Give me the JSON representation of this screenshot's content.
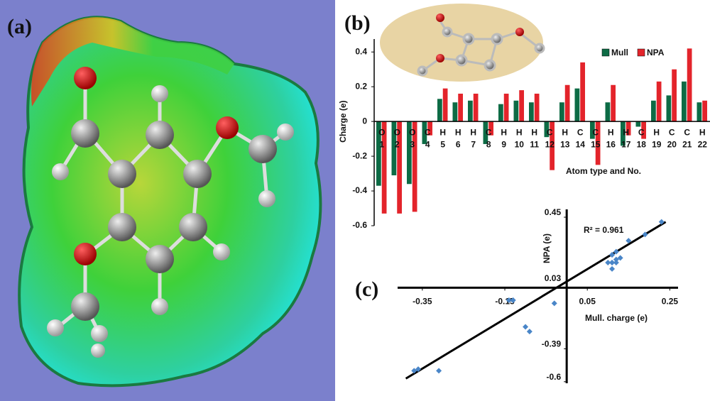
{
  "panel_a": {
    "label": "(a)"
  },
  "chart_data": [
    {
      "type": "bar",
      "label": "(b)",
      "ylabel": "Charge (e)",
      "xlabel": "Atom type and No.",
      "categories": [
        "1",
        "2",
        "3",
        "4",
        "5",
        "6",
        "7",
        "8",
        "9",
        "10",
        "11",
        "12",
        "13",
        "14",
        "15",
        "16",
        "17",
        "18",
        "19",
        "20",
        "21",
        "22"
      ],
      "atom_types": [
        "O",
        "O",
        "O",
        "C",
        "H",
        "H",
        "H",
        "C",
        "H",
        "H",
        "H",
        "C",
        "H",
        "C",
        "C",
        "H",
        "H",
        "C",
        "H",
        "C",
        "C",
        "H"
      ],
      "series": [
        {
          "name": "Mull",
          "color": "#0d6b45",
          "values": [
            -0.37,
            -0.31,
            -0.36,
            -0.13,
            0.13,
            0.11,
            0.12,
            -0.13,
            0.1,
            0.12,
            0.11,
            -0.09,
            0.11,
            0.19,
            -0.1,
            0.11,
            -0.14,
            -0.03,
            0.12,
            0.15,
            0.23,
            0.11
          ]
        },
        {
          "name": "NPA",
          "color": "#e3242b",
          "values": [
            -0.53,
            -0.53,
            -0.52,
            -0.08,
            0.19,
            0.16,
            0.16,
            -0.08,
            0.16,
            0.18,
            0.16,
            -0.28,
            0.21,
            0.34,
            -0.25,
            0.21,
            -0.08,
            -0.1,
            0.23,
            0.3,
            0.42,
            0.12
          ]
        }
      ],
      "ylim": [
        -0.6,
        0.45
      ],
      "yticks": [
        0.4,
        0.2,
        0,
        -0.2,
        -0.4,
        -0.6
      ],
      "legend": "upper right"
    },
    {
      "type": "scatter",
      "label": "(c)",
      "xlabel": "Mull. charge (e)",
      "ylabel": "NPA (e)",
      "annotation": "R² = 0.961",
      "color": "#4a86c8",
      "x": [
        -0.37,
        -0.31,
        -0.36,
        -0.13,
        0.13,
        0.11,
        0.12,
        -0.13,
        0.1,
        0.12,
        0.11,
        -0.09,
        0.11,
        0.19,
        -0.1,
        0.11,
        -0.14,
        -0.03,
        0.12,
        0.15,
        0.23,
        0.11
      ],
      "y": [
        -0.53,
        -0.53,
        -0.52,
        -0.08,
        0.19,
        0.16,
        0.16,
        -0.08,
        0.16,
        0.18,
        0.16,
        -0.28,
        0.21,
        0.34,
        -0.25,
        0.21,
        -0.08,
        -0.1,
        0.23,
        0.3,
        0.42,
        0.12
      ],
      "trendline": {
        "x": [
          -0.39,
          0.24
        ],
        "y": [
          -0.58,
          0.42
        ]
      },
      "xlim": [
        -0.41,
        0.27
      ],
      "ylim": [
        -0.61,
        0.5
      ],
      "xticks": [
        -0.35,
        -0.15,
        0.05,
        0.25
      ],
      "yticks": [
        0.45,
        0.03,
        -0.39,
        -0.6
      ]
    }
  ]
}
